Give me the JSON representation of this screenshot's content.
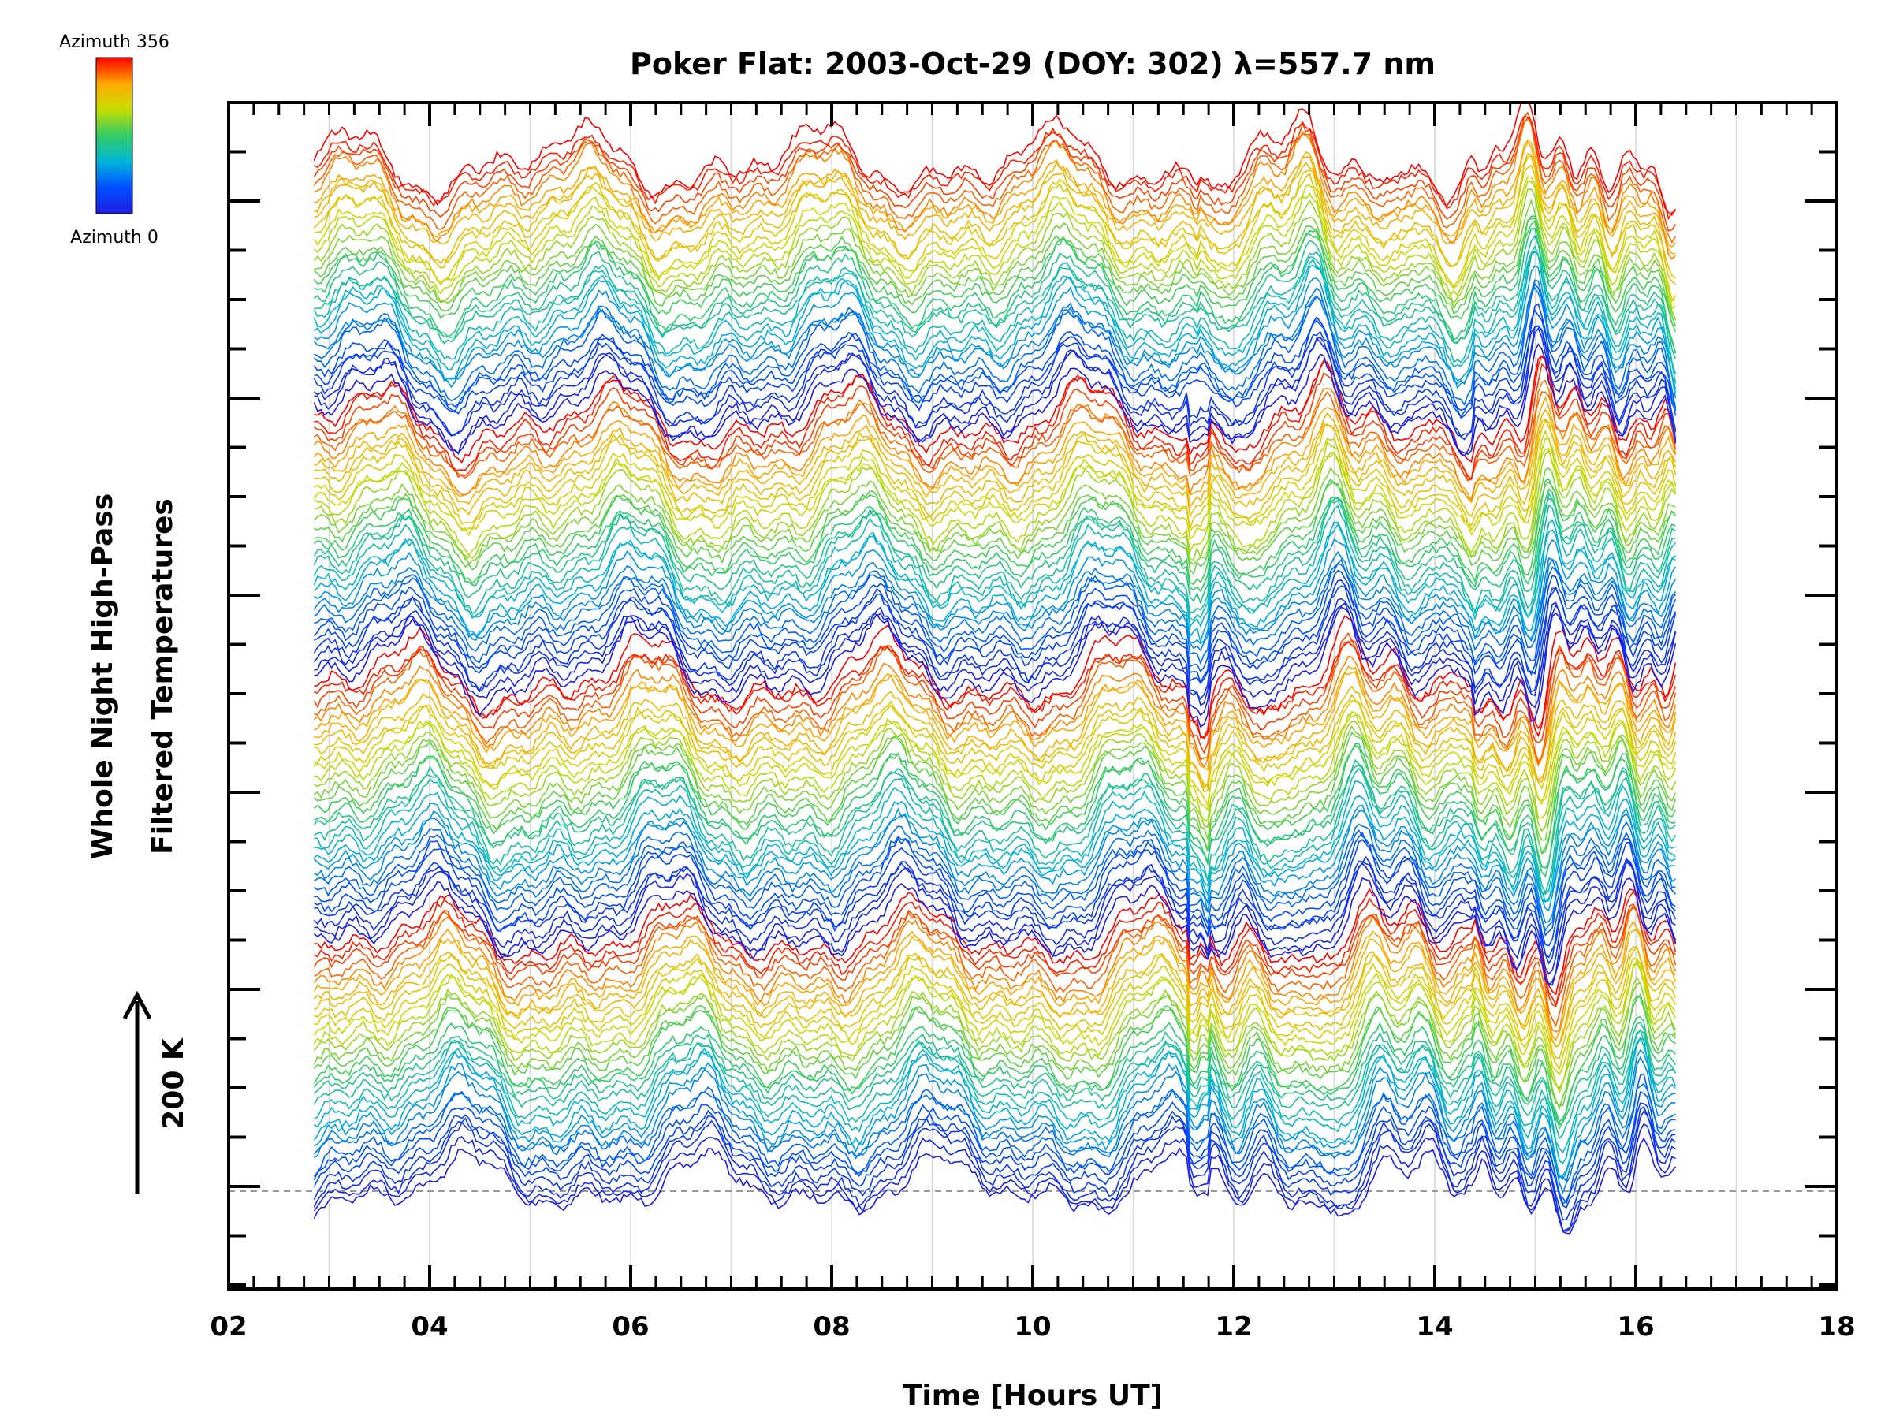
{
  "chart_data": {
    "type": "line",
    "title": "Poker Flat: 2003-Oct-29 (DOY: 302) λ=557.7 nm",
    "xlabel": "Time [Hours UT]",
    "ylabel_lines": [
      "Whole Night High-Pass",
      "Filtered Temperatures"
    ],
    "xlim": [
      2,
      18
    ],
    "x_ticks": [
      "02",
      "04",
      "06",
      "08",
      "10",
      "12",
      "14",
      "16",
      "18"
    ],
    "x_data_range": [
      2.85,
      16.4
    ],
    "scale_bar_label": "200 K",
    "colorbar": {
      "top_label": "Azimuth 356",
      "bottom_label": "Azimuth 0",
      "colors": [
        "#ff0000",
        "#ffaa00",
        "#c8dc00",
        "#32cd64",
        "#00b4dc",
        "#0050ff",
        "#1e1ee6"
      ]
    },
    "grid": true,
    "series_count": 128,
    "baseline": "dashed",
    "note_on_values": "Stacked, vertically offset azimuth traces; no numeric y tick labels are printed."
  }
}
